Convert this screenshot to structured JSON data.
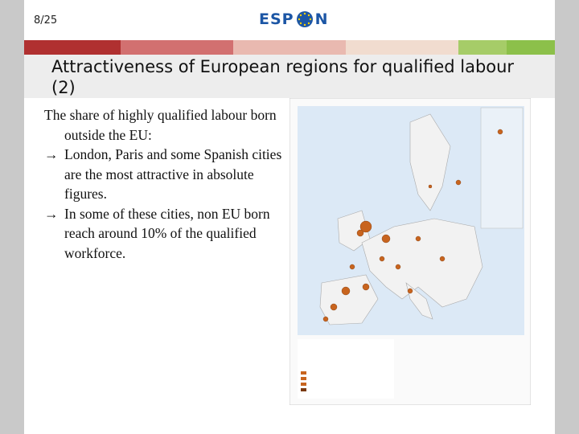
{
  "header": {
    "slide_number": "8/25",
    "logo_left": "ESP",
    "logo_right": "N"
  },
  "title": "Attractiveness of European regions for qualified labour (2)",
  "body": {
    "intro": "The share of highly qualified labour born outside the EU:",
    "points": [
      "London, Paris and some Spanish cities are the most attractive in absolute figures.",
      "In some of these cities, non EU born reach around 10% of the qualified workforce."
    ]
  }
}
